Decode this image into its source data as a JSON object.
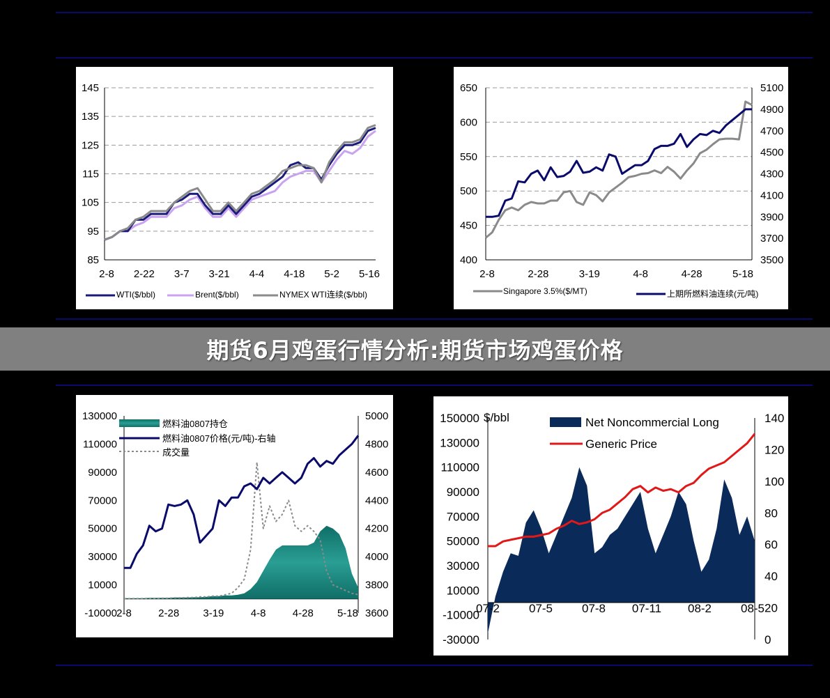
{
  "page": {
    "banner_title": "期货6月鸡蛋行情分析:期货市场鸡蛋价格",
    "background": "#000000",
    "rule_color": "#0a0a6a"
  },
  "chart_data": [
    {
      "id": "crude",
      "type": "line",
      "x_ticks": [
        "2-8",
        "2-22",
        "3-7",
        "3-21",
        "4-4",
        "4-18",
        "5-2",
        "5-16"
      ],
      "ylim": [
        85,
        145
      ],
      "y_ticks": [
        85,
        95,
        105,
        115,
        125,
        135,
        145
      ],
      "grid": true,
      "legend_position": "bottom",
      "series": [
        {
          "name": "WTI($/bbl)",
          "color": "#1a1a7a",
          "values": [
            92,
            93,
            95,
            95,
            99,
            99,
            101,
            101,
            101,
            105,
            106,
            108,
            108,
            104,
            101,
            101,
            104,
            101,
            104,
            107,
            108,
            110,
            112,
            114,
            118,
            119,
            117,
            117,
            113,
            118,
            122,
            125,
            125,
            126,
            130,
            131
          ]
        },
        {
          "name": "Brent($/bbl)",
          "color": "#c9a3f0",
          "values": [
            92,
            93,
            95,
            95,
            97,
            98,
            100,
            100,
            100,
            103,
            104,
            106,
            107,
            103,
            100,
            100,
            103,
            100,
            103,
            106,
            107,
            108,
            109,
            112,
            114,
            115,
            116,
            116,
            112,
            116,
            120,
            123,
            122,
            124,
            128,
            130
          ]
        },
        {
          "name": "NYMEX WTI连续($/bbl)",
          "color": "#8a8a8a",
          "values": [
            92,
            93,
            95,
            96,
            99,
            100,
            102,
            102,
            102,
            105,
            107,
            109,
            110,
            106,
            102,
            102,
            105,
            102,
            105,
            108,
            109,
            111,
            113,
            116,
            117,
            118,
            118,
            117,
            112,
            119,
            123,
            126,
            126,
            127,
            131,
            132
          ]
        }
      ]
    },
    {
      "id": "fuel",
      "type": "line",
      "x_ticks": [
        "2-8",
        "2-28",
        "3-19",
        "4-8",
        "4-28",
        "5-18"
      ],
      "ylim_left": [
        400,
        650
      ],
      "y_ticks_left": [
        400,
        450,
        500,
        550,
        600,
        650
      ],
      "ylim_right": [
        3500,
        5100
      ],
      "y_ticks_right": [
        3500,
        3700,
        3900,
        4100,
        4300,
        4500,
        4700,
        4900,
        5100
      ],
      "grid": true,
      "legend_position": "bottom",
      "series": [
        {
          "name": "Singapore 3.5%($/MT)",
          "axis": "left",
          "color": "#8a8a8a",
          "values": [
            432,
            440,
            458,
            472,
            476,
            472,
            480,
            484,
            482,
            482,
            486,
            486,
            498,
            500,
            484,
            480,
            498,
            494,
            485,
            498,
            505,
            512,
            520,
            522,
            525,
            526,
            530,
            526,
            535,
            528,
            518,
            530,
            540,
            555,
            560,
            568,
            575,
            576,
            576,
            575,
            630,
            625
          ]
        },
        {
          "name": "上期所燃料油连续(元/吨)",
          "axis": "right",
          "color": "#0a0a6a",
          "values": [
            3900,
            3900,
            3910,
            4050,
            4070,
            4230,
            4220,
            4300,
            4330,
            4240,
            4360,
            4270,
            4280,
            4320,
            4420,
            4310,
            4320,
            4360,
            4330,
            4480,
            4460,
            4300,
            4340,
            4380,
            4380,
            4420,
            4530,
            4560,
            4560,
            4580,
            4670,
            4550,
            4620,
            4670,
            4660,
            4700,
            4680,
            4750,
            4800,
            4850,
            4900,
            4900
          ]
        }
      ]
    },
    {
      "id": "volume",
      "type": "area",
      "x_ticks": [
        "2-8",
        "2-28",
        "3-19",
        "4-8",
        "4-28",
        "5-18"
      ],
      "ylim_left": [
        -10000,
        130000
      ],
      "y_ticks_left": [
        -10000,
        10000,
        30000,
        50000,
        70000,
        90000,
        110000,
        130000
      ],
      "ylim_right": [
        3600,
        5000
      ],
      "y_ticks_right": [
        3600,
        3800,
        4000,
        4200,
        4400,
        4600,
        4800,
        5000
      ],
      "legend_position": "top-left",
      "series": [
        {
          "name": "燃料油0807持仓",
          "axis": "left",
          "color": "#1a8a82",
          "values": [
            500,
            500,
            500,
            500,
            800,
            800,
            800,
            800,
            1000,
            1000,
            1000,
            1200,
            1200,
            1500,
            2000,
            2000,
            2500,
            2500,
            3000,
            4000,
            7000,
            12000,
            20000,
            28000,
            35000,
            38000,
            38000,
            38000,
            38000,
            38000,
            40000,
            48000,
            52000,
            50000,
            46000,
            36000,
            18000,
            8000
          ]
        },
        {
          "name": "燃料油0807价格(元/吨)-右轴",
          "axis": "right",
          "color": "#0a0a6a",
          "values": [
            3920,
            3920,
            4020,
            4080,
            4220,
            4180,
            4200,
            4370,
            4360,
            4370,
            4400,
            4300,
            4100,
            4150,
            4200,
            4400,
            4360,
            4420,
            4420,
            4500,
            4520,
            4480,
            4560,
            4520,
            4560,
            4600,
            4560,
            4520,
            4560,
            4660,
            4700,
            4640,
            4680,
            4660,
            4720,
            4760,
            4800,
            4860
          ]
        },
        {
          "name": "成交量",
          "axis": "left",
          "color": "#8a8a8a",
          "values": [
            200,
            200,
            300,
            300,
            400,
            400,
            500,
            500,
            800,
            800,
            1000,
            1000,
            1500,
            1500,
            2000,
            2000,
            3000,
            4000,
            8000,
            14000,
            35000,
            97000,
            50000,
            66000,
            55000,
            60000,
            70000,
            52000,
            48000,
            52000,
            48000,
            42000,
            20000,
            10000,
            8000,
            6000,
            4000,
            3000
          ]
        }
      ]
    },
    {
      "id": "cftc",
      "type": "area",
      "x_ticks": [
        "07-2",
        "07-5",
        "07-8",
        "07-11",
        "08-2",
        "08-5"
      ],
      "ylabel_left": "$/bbl",
      "ylim_left": [
        -30000,
        150000
      ],
      "y_ticks_left": [
        -30000,
        -10000,
        10000,
        30000,
        50000,
        70000,
        90000,
        110000,
        130000,
        150000
      ],
      "ylim_right": [
        0,
        140
      ],
      "y_ticks_right": [
        0,
        20,
        40,
        60,
        80,
        100,
        120,
        140
      ],
      "legend_position": "top",
      "series": [
        {
          "name": "Net Noncommercial Long",
          "axis": "left",
          "color": "#0a2a5a",
          "values": [
            -25000,
            5000,
            25000,
            40000,
            38000,
            65000,
            75000,
            60000,
            40000,
            55000,
            70000,
            85000,
            110000,
            95000,
            40000,
            45000,
            55000,
            60000,
            70000,
            80000,
            90000,
            60000,
            40000,
            55000,
            70000,
            90000,
            80000,
            50000,
            25000,
            35000,
            60000,
            100000,
            85000,
            55000,
            70000,
            50000
          ]
        },
        {
          "name": "Generic Price",
          "axis": "right",
          "color": "#e01818",
          "values": [
            59,
            59,
            62,
            63,
            64,
            65,
            65,
            66,
            67,
            70,
            72,
            75,
            73,
            74,
            76,
            80,
            82,
            86,
            90,
            95,
            97,
            93,
            96,
            94,
            95,
            93,
            97,
            99,
            104,
            108,
            110,
            112,
            116,
            120,
            124,
            130
          ]
        }
      ]
    }
  ]
}
